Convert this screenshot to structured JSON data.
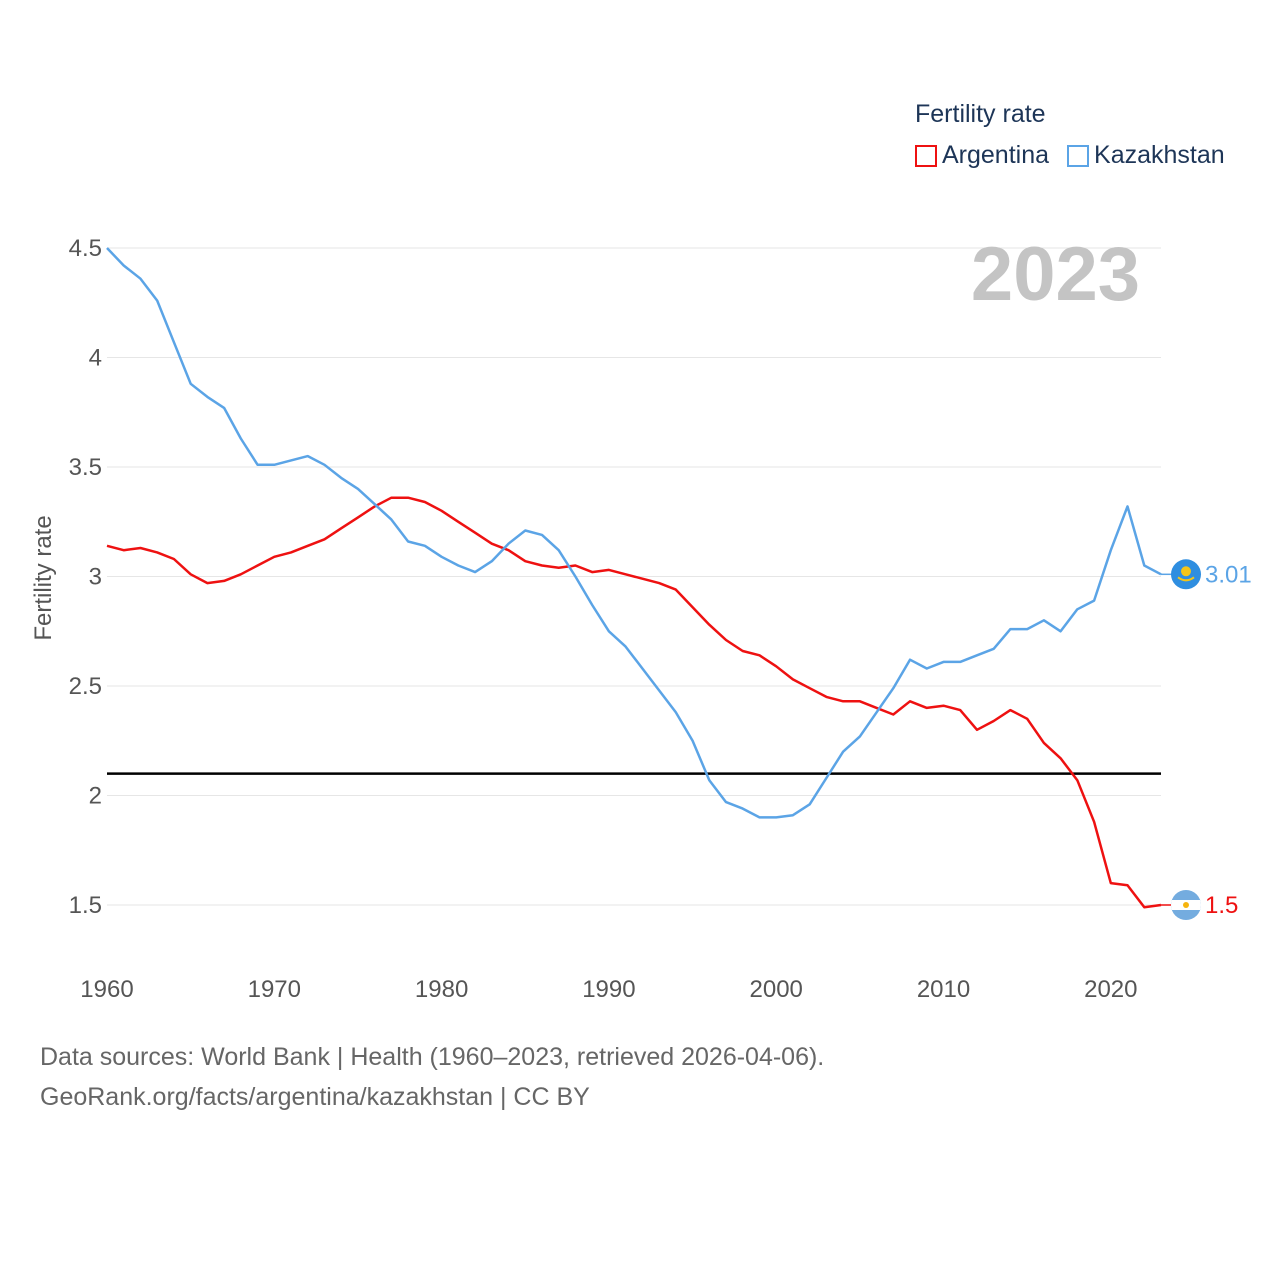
{
  "chart_data": {
    "type": "line",
    "title": "",
    "year_label": "2023",
    "legend_title": "Fertility rate",
    "xlabel": "",
    "ylabel": "Fertility rate",
    "xlim": [
      1960,
      2023
    ],
    "ylim": [
      1.25,
      4.5
    ],
    "x_ticks": [
      1960,
      1970,
      1980,
      1990,
      2000,
      2010,
      2020
    ],
    "x_tick_labels": [
      "1960",
      "1970",
      "1980",
      "1990",
      "2000",
      "2010",
      "2020"
    ],
    "y_ticks": [
      1.5,
      2,
      2.5,
      3,
      3.5,
      4,
      4.5
    ],
    "y_tick_labels": [
      "1.5",
      "2",
      "2.5",
      "3",
      "3.5",
      "4",
      "4.5"
    ],
    "reference_line": 2.1,
    "x": [
      1960,
      1961,
      1962,
      1963,
      1964,
      1965,
      1966,
      1967,
      1968,
      1969,
      1970,
      1971,
      1972,
      1973,
      1974,
      1975,
      1976,
      1977,
      1978,
      1979,
      1980,
      1981,
      1982,
      1983,
      1984,
      1985,
      1986,
      1987,
      1988,
      1989,
      1990,
      1991,
      1992,
      1993,
      1994,
      1995,
      1996,
      1997,
      1998,
      1999,
      2000,
      2001,
      2002,
      2003,
      2004,
      2005,
      2006,
      2007,
      2008,
      2009,
      2010,
      2011,
      2012,
      2013,
      2014,
      2015,
      2016,
      2017,
      2018,
      2019,
      2020,
      2021,
      2022,
      2023
    ],
    "series": [
      {
        "name": "Argentina",
        "color": "#ee1111",
        "end_label": "1.5",
        "flag": "argentina-flag",
        "values": [
          3.14,
          3.12,
          3.13,
          3.11,
          3.08,
          3.01,
          2.97,
          2.98,
          3.01,
          3.05,
          3.09,
          3.11,
          3.14,
          3.17,
          3.22,
          3.27,
          3.32,
          3.36,
          3.36,
          3.34,
          3.3,
          3.25,
          3.2,
          3.15,
          3.12,
          3.07,
          3.05,
          3.04,
          3.05,
          3.02,
          3.03,
          3.01,
          2.99,
          2.97,
          2.94,
          2.86,
          2.78,
          2.71,
          2.66,
          2.64,
          2.59,
          2.53,
          2.49,
          2.45,
          2.43,
          2.43,
          2.4,
          2.37,
          2.43,
          2.4,
          2.41,
          2.39,
          2.3,
          2.34,
          2.39,
          2.35,
          2.24,
          2.17,
          2.07,
          1.88,
          1.6,
          1.59,
          1.49,
          1.5
        ]
      },
      {
        "name": "Kazakhstan",
        "color": "#5ba4e6",
        "end_label": "3.01",
        "flag": "kazakhstan-flag",
        "values": [
          4.5,
          4.42,
          4.36,
          4.26,
          4.07,
          3.88,
          3.82,
          3.77,
          3.63,
          3.51,
          3.51,
          3.53,
          3.55,
          3.51,
          3.45,
          3.4,
          3.33,
          3.26,
          3.16,
          3.14,
          3.09,
          3.05,
          3.02,
          3.07,
          3.15,
          3.21,
          3.19,
          3.12,
          3.0,
          2.87,
          2.75,
          2.68,
          2.58,
          2.48,
          2.38,
          2.25,
          2.07,
          1.97,
          1.94,
          1.9,
          1.9,
          1.91,
          1.96,
          2.08,
          2.2,
          2.27,
          2.38,
          2.49,
          2.62,
          2.58,
          2.61,
          2.61,
          2.64,
          2.67,
          2.76,
          2.76,
          2.8,
          2.75,
          2.85,
          2.89,
          3.12,
          3.32,
          3.05,
          3.01
        ]
      }
    ]
  },
  "footer": {
    "line1": "Data sources: World Bank | Health (1960–2023, retrieved 2026-04-06).",
    "line2": "GeoRank.org/facts/argentina/kazakhstan | CC BY"
  }
}
